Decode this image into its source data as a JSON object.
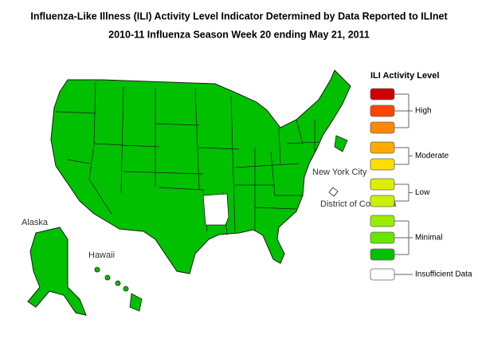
{
  "header": {
    "title": "Influenza-Like Illness (ILI) Activity Level Indicator Determined by Data Reported to ILInet",
    "subtitle": "2010-11  Influenza Season Week  20 ending May 21, 2011"
  },
  "map": {
    "labels": {
      "alaska": "Alaska",
      "hawaii": "Hawaii",
      "nyc": "New York City",
      "dc": "District of Columbia"
    }
  },
  "legend": {
    "title": "ILI Activity Level",
    "groups": [
      {
        "label": "High",
        "colors": [
          "#cc0000",
          "#ff4400",
          "#ff8800"
        ]
      },
      {
        "label": "Moderate",
        "colors": [
          "#ffaa00",
          "#ffdd00"
        ]
      },
      {
        "label": "Low",
        "colors": [
          "#ddee00",
          "#ccf000"
        ]
      },
      {
        "label": "Minimal",
        "colors": [
          "#99ee00",
          "#66e600",
          "#00c000"
        ]
      },
      {
        "label": "Insufficient Data",
        "colors": [
          "#ffffff"
        ]
      }
    ]
  }
}
